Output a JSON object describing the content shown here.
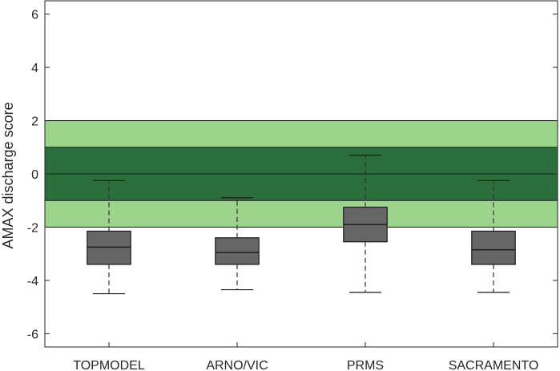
{
  "chart_data": {
    "type": "box",
    "title": "",
    "xlabel": "",
    "ylabel": "AMAX discharge score",
    "ylim": [
      -6.5,
      6.5
    ],
    "yticks": [
      6,
      4,
      2,
      0,
      -2,
      -4,
      -6
    ],
    "ytick_labels": [
      "6",
      "4",
      "2",
      "0",
      "-2",
      "-4",
      "-6"
    ],
    "categories": [
      "TOPMODEL",
      "ARNO/VIC",
      "PRMS",
      "SACRAMENTO"
    ],
    "boxes": [
      {
        "whisker_low": -4.5,
        "q1": -3.4,
        "median": -2.75,
        "q3": -2.15,
        "whisker_high": -0.25
      },
      {
        "whisker_low": -4.35,
        "q1": -3.4,
        "median": -2.95,
        "q3": -2.4,
        "whisker_high": -0.9
      },
      {
        "whisker_low": -4.45,
        "q1": -2.55,
        "median": -1.9,
        "q3": -1.25,
        "whisker_high": 0.7
      },
      {
        "whisker_low": -4.45,
        "q1": -3.4,
        "median": -2.85,
        "q3": -2.15,
        "whisker_high": -0.25
      }
    ],
    "bands": [
      {
        "from": -2,
        "to": 2,
        "color": "#9dd48c"
      },
      {
        "from": -1,
        "to": 1,
        "color": "#2a6e3c"
      }
    ],
    "zero_line": 0,
    "colors": {
      "box_fill": "#666666",
      "box_edge": "#1a1a1a",
      "whisker": "#333333",
      "axis": "#262626"
    },
    "grid": false,
    "legend": "none"
  }
}
